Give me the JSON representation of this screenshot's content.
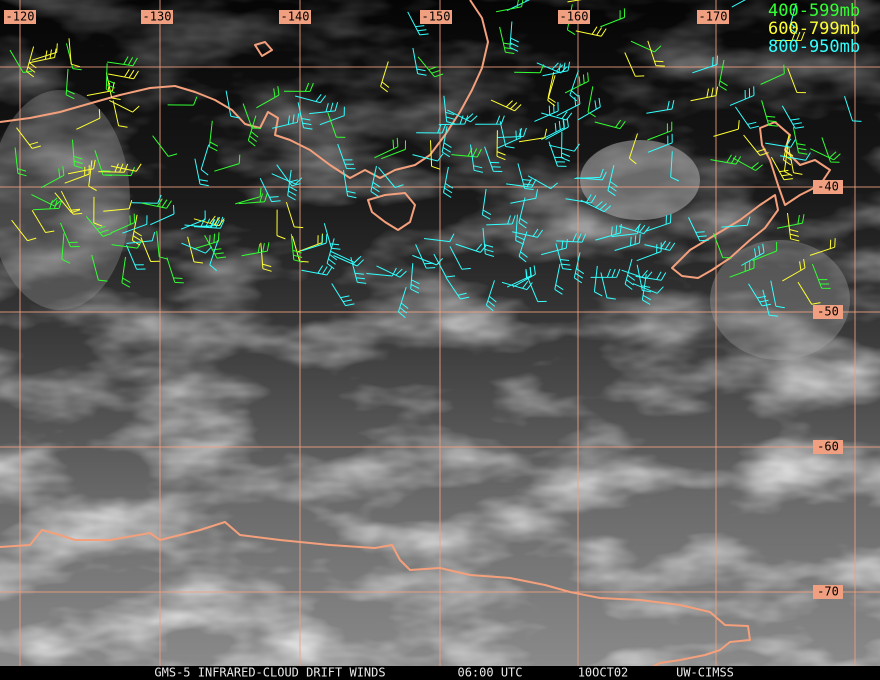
{
  "map": {
    "longitude_labels": [
      "-120",
      "-130",
      "-140",
      "-150",
      "-160",
      "-170"
    ],
    "latitude_labels": [
      "-40",
      "-50",
      "-60",
      "-70"
    ],
    "legend": [
      {
        "label": "400-599mb",
        "color": "#33ff33"
      },
      {
        "label": "600-799mb",
        "color": "#ffff33"
      },
      {
        "label": "800-950mb",
        "color": "#33ffff"
      }
    ],
    "footer": [
      "GMS-5 INFRARED-CLOUD DRIFT WINDS",
      "06:00 UTC",
      "10OCT02",
      "UW-CIMSS"
    ]
  }
}
